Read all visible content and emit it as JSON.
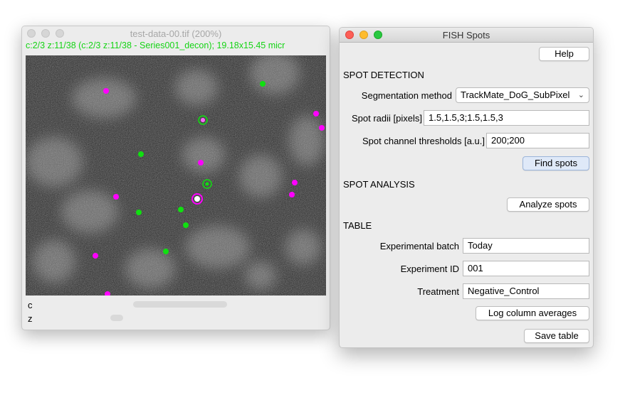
{
  "image_window": {
    "title": "test-data-00.tif (200%)",
    "status_line": "c:2/3 z:11/38 (c:2/3 z:11/38 - Series001_decon); 19.18x15.45 micr",
    "slider_c_label": "c",
    "slider_z_label": "z",
    "spot_colors": {
      "magenta": "#ff00ff",
      "green": "#10e010"
    }
  },
  "fish_window": {
    "title": "FISH Spots",
    "help_label": "Help",
    "spot_detection": {
      "heading": "SPOT DETECTION",
      "segmentation_label": "Segmentation method",
      "segmentation_value": "TrackMate_DoG_SubPixel",
      "radii_label": "Spot radii [pixels]",
      "radii_value": "1.5,1.5,3;1.5,1.5,3",
      "thresholds_label": "Spot channel thresholds [a.u.]",
      "thresholds_value": "200;200",
      "find_label": "Find spots"
    },
    "spot_analysis": {
      "heading": "SPOT ANALYSIS",
      "analyze_label": "Analyze spots"
    },
    "table": {
      "heading": "TABLE",
      "batch_label": "Experimental batch",
      "batch_value": "Today",
      "id_label": "Experiment ID",
      "id_value": "001",
      "treatment_label": "Treatment",
      "treatment_value": "Negative_Control",
      "log_label": "Log column averages",
      "save_label": "Save table"
    }
  }
}
